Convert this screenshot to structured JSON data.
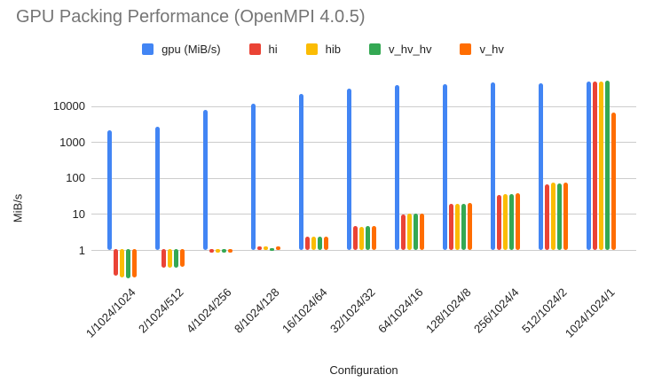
{
  "title": "GPU Packing Performance (OpenMPI 4.0.5)",
  "colors": {
    "title_text": "#757575",
    "axis_text": "#222222",
    "gridline": "#cccccc",
    "background": "#ffffff",
    "series_blue": "#4285F4",
    "series_red": "#EA4335",
    "series_yellow": "#FBBC04",
    "series_green": "#34A853",
    "series_orange": "#FF6D01"
  },
  "chart_data": {
    "type": "bar",
    "title": "GPU Packing Performance (OpenMPI 4.0.5)",
    "xlabel": "Configuration",
    "ylabel": "MiB/s",
    "y_scale": "log",
    "y_ticks": [
      1,
      10,
      100,
      1000,
      10000
    ],
    "ylim": [
      0.1,
      60000
    ],
    "grid": true,
    "legend_position": "top",
    "categories": [
      "1/1024/1024",
      "2/1024/512",
      "4/1024/256",
      "8/1024/128",
      "16/1024/64",
      "32/1024/32",
      "64/1024/16",
      "128/1024/8",
      "256/1024/4",
      "512/1024/2",
      "1024/1024/1"
    ],
    "series": [
      {
        "name": "gpu (MiB/s)",
        "color": "#4285F4",
        "values": [
          2150,
          2600,
          7900,
          11800,
          22000,
          30500,
          38000,
          41500,
          46000,
          42500,
          47500
        ]
      },
      {
        "name": "hi",
        "color": "#EA4335",
        "values": [
          0.18,
          0.31,
          0.85,
          1.25,
          2.4,
          4.7,
          9.5,
          19,
          34,
          66,
          48500
        ]
      },
      {
        "name": "hib",
        "color": "#FBBC04",
        "values": [
          0.16,
          0.3,
          0.8,
          1.25,
          2.3,
          4.4,
          10,
          19,
          36,
          76,
          48000
        ]
      },
      {
        "name": "v_hv_hv",
        "color": "#34A853",
        "values": [
          0.15,
          0.3,
          0.78,
          1.15,
          2.3,
          4.5,
          10,
          19,
          36,
          71,
          50000
        ]
      },
      {
        "name": "v_hv",
        "color": "#FF6D01",
        "values": [
          0.16,
          0.32,
          0.8,
          1.25,
          2.4,
          4.6,
          10,
          20.5,
          37,
          74,
          6500
        ]
      }
    ]
  }
}
